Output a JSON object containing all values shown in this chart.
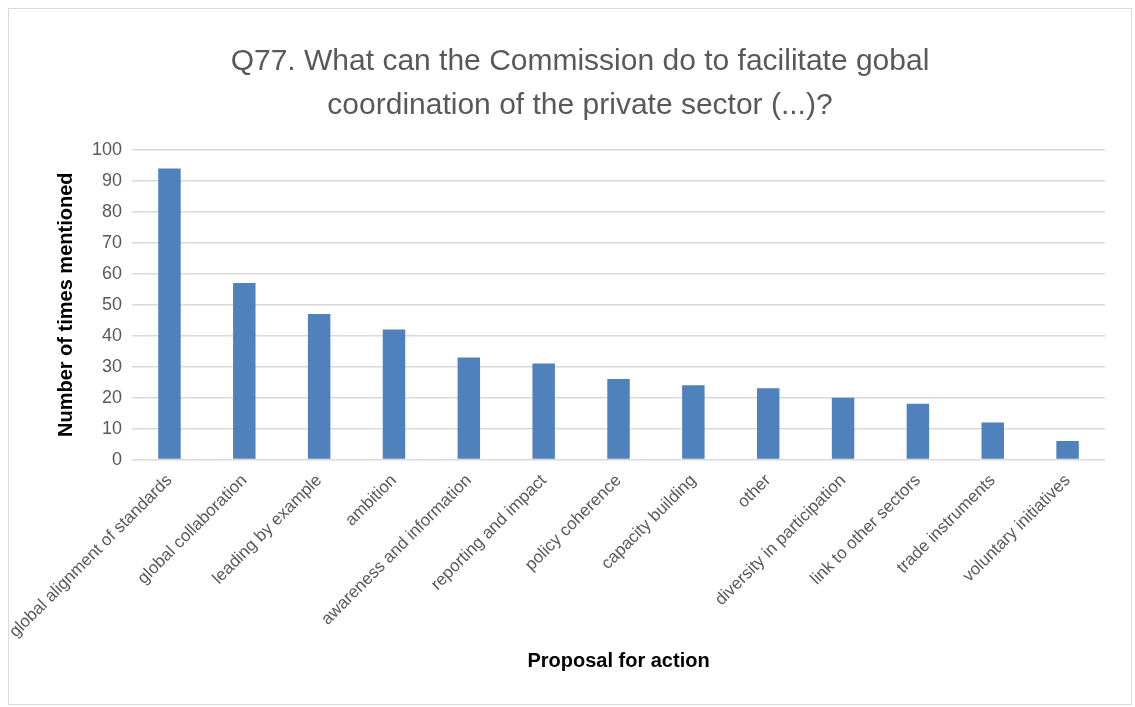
{
  "chart_data": {
    "type": "bar",
    "title": "Q77. What can the Commission do to facilitate gobal coordination of the private sector (...)?",
    "xlabel": "Proposal for action",
    "ylabel": "Number of times mentioned",
    "categories": [
      "global alignment of standards",
      "global collaboration",
      "leading by example",
      "ambition",
      "awareness and information",
      "reporting and impact",
      "policy coherence",
      "capacity building",
      "other",
      "diversity in participation",
      "link to other sectors",
      "trade instruments",
      "voluntary initiatives"
    ],
    "values": [
      94,
      57,
      47,
      42,
      33,
      31,
      26,
      24,
      23,
      20,
      18,
      12,
      6
    ],
    "color": "#4f81bd",
    "ylim": [
      0,
      100
    ],
    "yticks": [
      0,
      10,
      20,
      30,
      40,
      50,
      60,
      70,
      80,
      90,
      100
    ],
    "grid": "y"
  }
}
